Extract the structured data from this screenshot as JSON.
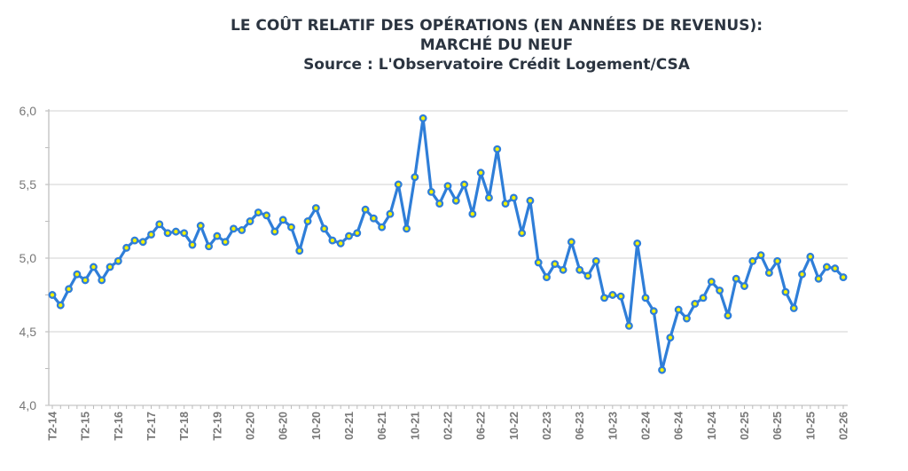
{
  "chart_data": {
    "type": "line",
    "title": "LE COÛT RELATIF DES OPÉRATIONS (EN ANNÉES DE REVENUS): MARCHÉ DU NEUF",
    "title_lines": [
      "LE COÛT RELATIF DES OPÉRATIONS (EN ANNÉES DE REVENUS):",
      "MARCHÉ DU NEUF"
    ],
    "subtitle": "Source : L'Observatoire Crédit Logement/CSA",
    "xlabel": "",
    "ylabel": "",
    "ylim": [
      4.0,
      6.0
    ],
    "y_ticks": [
      "4,0",
      "4,5",
      "5,0",
      "5,5",
      "6,0"
    ],
    "y_tick_values": [
      4.0,
      4.5,
      5.0,
      5.5,
      6.0
    ],
    "x_tick_labels": [
      "T2-14",
      "T2-15",
      "T2-16",
      "T2-17",
      "T2-18",
      "T2-19",
      "02-20",
      "06-20",
      "10-20",
      "02-21",
      "06-21",
      "10-21",
      "02-22",
      "06-22",
      "10-22",
      "02-23",
      "06-23",
      "10-23",
      "02-24",
      "06-24",
      "10-24",
      "02-25",
      "06-25",
      "10-25",
      "02-26"
    ],
    "points_per_tick_interval": 4,
    "grid": true,
    "legend": "none",
    "series": [
      {
        "color": "#2f7ed8",
        "marker_fill": "#f2f200",
        "values": [
          4.75,
          4.68,
          4.79,
          4.89,
          4.85,
          4.94,
          4.85,
          4.94,
          4.98,
          5.07,
          5.12,
          5.11,
          5.16,
          5.23,
          5.17,
          5.18,
          5.17,
          5.09,
          5.22,
          5.08,
          5.15,
          5.11,
          5.2,
          5.19,
          5.25,
          5.31,
          5.29,
          5.18,
          5.26,
          5.21,
          5.05,
          5.25,
          5.34,
          5.2,
          5.12,
          5.1,
          5.15,
          5.17,
          5.33,
          5.27,
          5.21,
          5.3,
          5.5,
          5.2,
          5.55,
          5.95,
          5.45,
          5.37,
          5.49,
          5.39,
          5.5,
          5.3,
          5.58,
          5.41,
          5.74,
          5.37,
          5.41,
          5.17,
          5.39,
          4.97,
          4.87,
          4.96,
          4.92,
          5.11,
          4.92,
          4.88,
          4.98,
          4.73,
          4.75,
          4.74,
          4.54,
          5.1,
          4.73,
          4.64,
          4.24,
          4.46,
          4.65,
          4.59,
          4.69,
          4.73,
          4.84,
          4.78,
          4.61,
          4.86,
          4.81,
          4.98,
          5.02,
          4.9,
          4.98,
          4.77,
          4.66,
          4.89,
          5.01,
          4.86,
          4.94,
          4.93,
          4.87
        ]
      }
    ]
  }
}
